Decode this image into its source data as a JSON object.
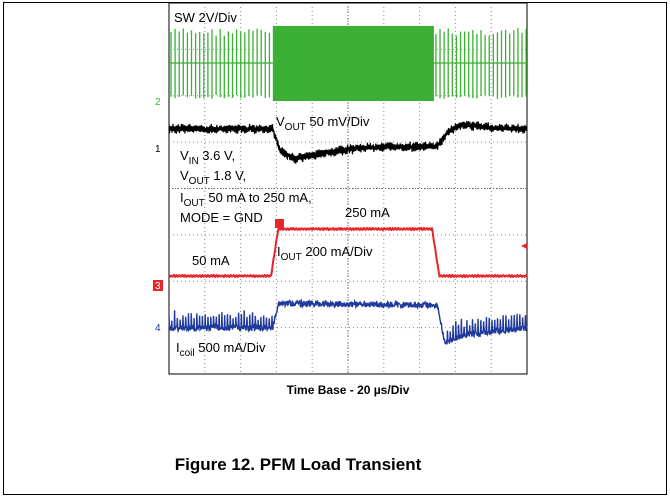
{
  "chart_data": {
    "type": "line",
    "title": "Figure 12. PFM Load Transient",
    "xlabel": "Time Base - 20 µs/Div",
    "x_divisions": 10,
    "y_divisions": 8,
    "grid": true,
    "conditions": {
      "vin": [
        "V",
        "IN",
        " 3.6 V,"
      ],
      "vout": [
        "V",
        "OUT",
        " 1.8 V,"
      ],
      "iout": [
        "I",
        "OUT",
        " 50 mA to 250 mA,"
      ],
      "mode": "MODE = GND"
    },
    "channels": [
      {
        "marker": "2",
        "color": "#3cb034",
        "scale_label": "SW 2V/Div",
        "states": [
          {
            "x_start": 0,
            "x_end": 2.9,
            "mode": "PFM bursts"
          },
          {
            "x_start": 2.9,
            "x_end": 7.4,
            "mode": "continuous switching"
          },
          {
            "x_start": 7.4,
            "x_end": 10,
            "mode": "PFM bursts"
          }
        ]
      },
      {
        "marker": "1",
        "color": "#000000",
        "scale_label": [
          "V",
          "OUT",
          " 50 mV/Div"
        ],
        "points": [
          [
            0,
            0.0
          ],
          [
            2.9,
            0.0
          ],
          [
            3.1,
            -0.95
          ],
          [
            3.5,
            -1.3
          ],
          [
            4.5,
            -1.0
          ],
          [
            5.5,
            -0.8
          ],
          [
            7.5,
            -0.75
          ],
          [
            7.8,
            -0.1
          ],
          [
            8.2,
            0.2
          ],
          [
            9,
            0.05
          ],
          [
            10,
            0.0
          ]
        ]
      },
      {
        "marker": "3",
        "color": "#e8252b",
        "scale_label": [
          "I",
          "OUT",
          " 200 mA/Div"
        ],
        "annotations": [
          "50 mA",
          "250 mA"
        ],
        "points": [
          [
            0,
            0
          ],
          [
            2.85,
            0
          ],
          [
            3.05,
            1.0
          ],
          [
            7.35,
            1.0
          ],
          [
            7.55,
            0
          ],
          [
            10,
            0
          ]
        ]
      },
      {
        "marker": "4",
        "color": "#1f3a9a",
        "scale_label": [
          "I",
          "coil",
          " 500 mA/Div"
        ],
        "points": [
          [
            0,
            0
          ],
          [
            2.9,
            0
          ],
          [
            3.05,
            0.65
          ],
          [
            7.5,
            0.6
          ],
          [
            7.7,
            -0.4
          ],
          [
            8.2,
            -0.2
          ],
          [
            10,
            0
          ]
        ]
      }
    ]
  }
}
